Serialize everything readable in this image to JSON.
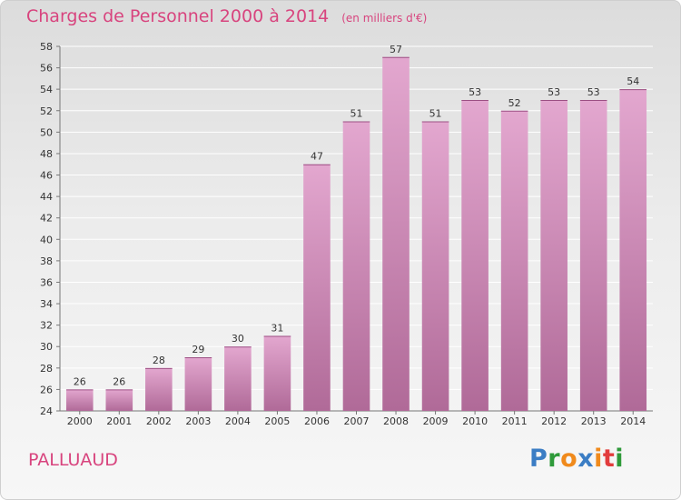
{
  "title": "Charges de Personnel 2000 à 2014",
  "subtitle": "(en milliers d'€)",
  "place": "PALLUAUD",
  "brand": {
    "letters": [
      "P",
      "r",
      "o",
      "x",
      "i",
      "t",
      "i"
    ],
    "colors": [
      "#3b7dc4",
      "#2f9a3a",
      "#f08a1c",
      "#3b7dc4",
      "#f08a1c",
      "#e23c3c",
      "#2f9a3a"
    ]
  },
  "colors": {
    "accent": "#d8447e",
    "bar_top": "#e3a7cf",
    "bar_bottom": "#b06a98"
  },
  "chart_data": {
    "type": "bar",
    "categories": [
      "2000",
      "2001",
      "2002",
      "2003",
      "2004",
      "2005",
      "2006",
      "2007",
      "2008",
      "2009",
      "2010",
      "2011",
      "2012",
      "2013",
      "2014"
    ],
    "values": [
      26,
      26,
      28,
      29,
      30,
      31,
      47,
      51,
      57,
      51,
      53,
      52,
      53,
      53,
      54
    ],
    "ylim": [
      24,
      58
    ],
    "yticks": [
      24,
      26,
      28,
      30,
      32,
      34,
      36,
      38,
      40,
      42,
      44,
      46,
      48,
      50,
      52,
      54,
      56,
      58
    ],
    "grid": true,
    "data_labels": true
  }
}
